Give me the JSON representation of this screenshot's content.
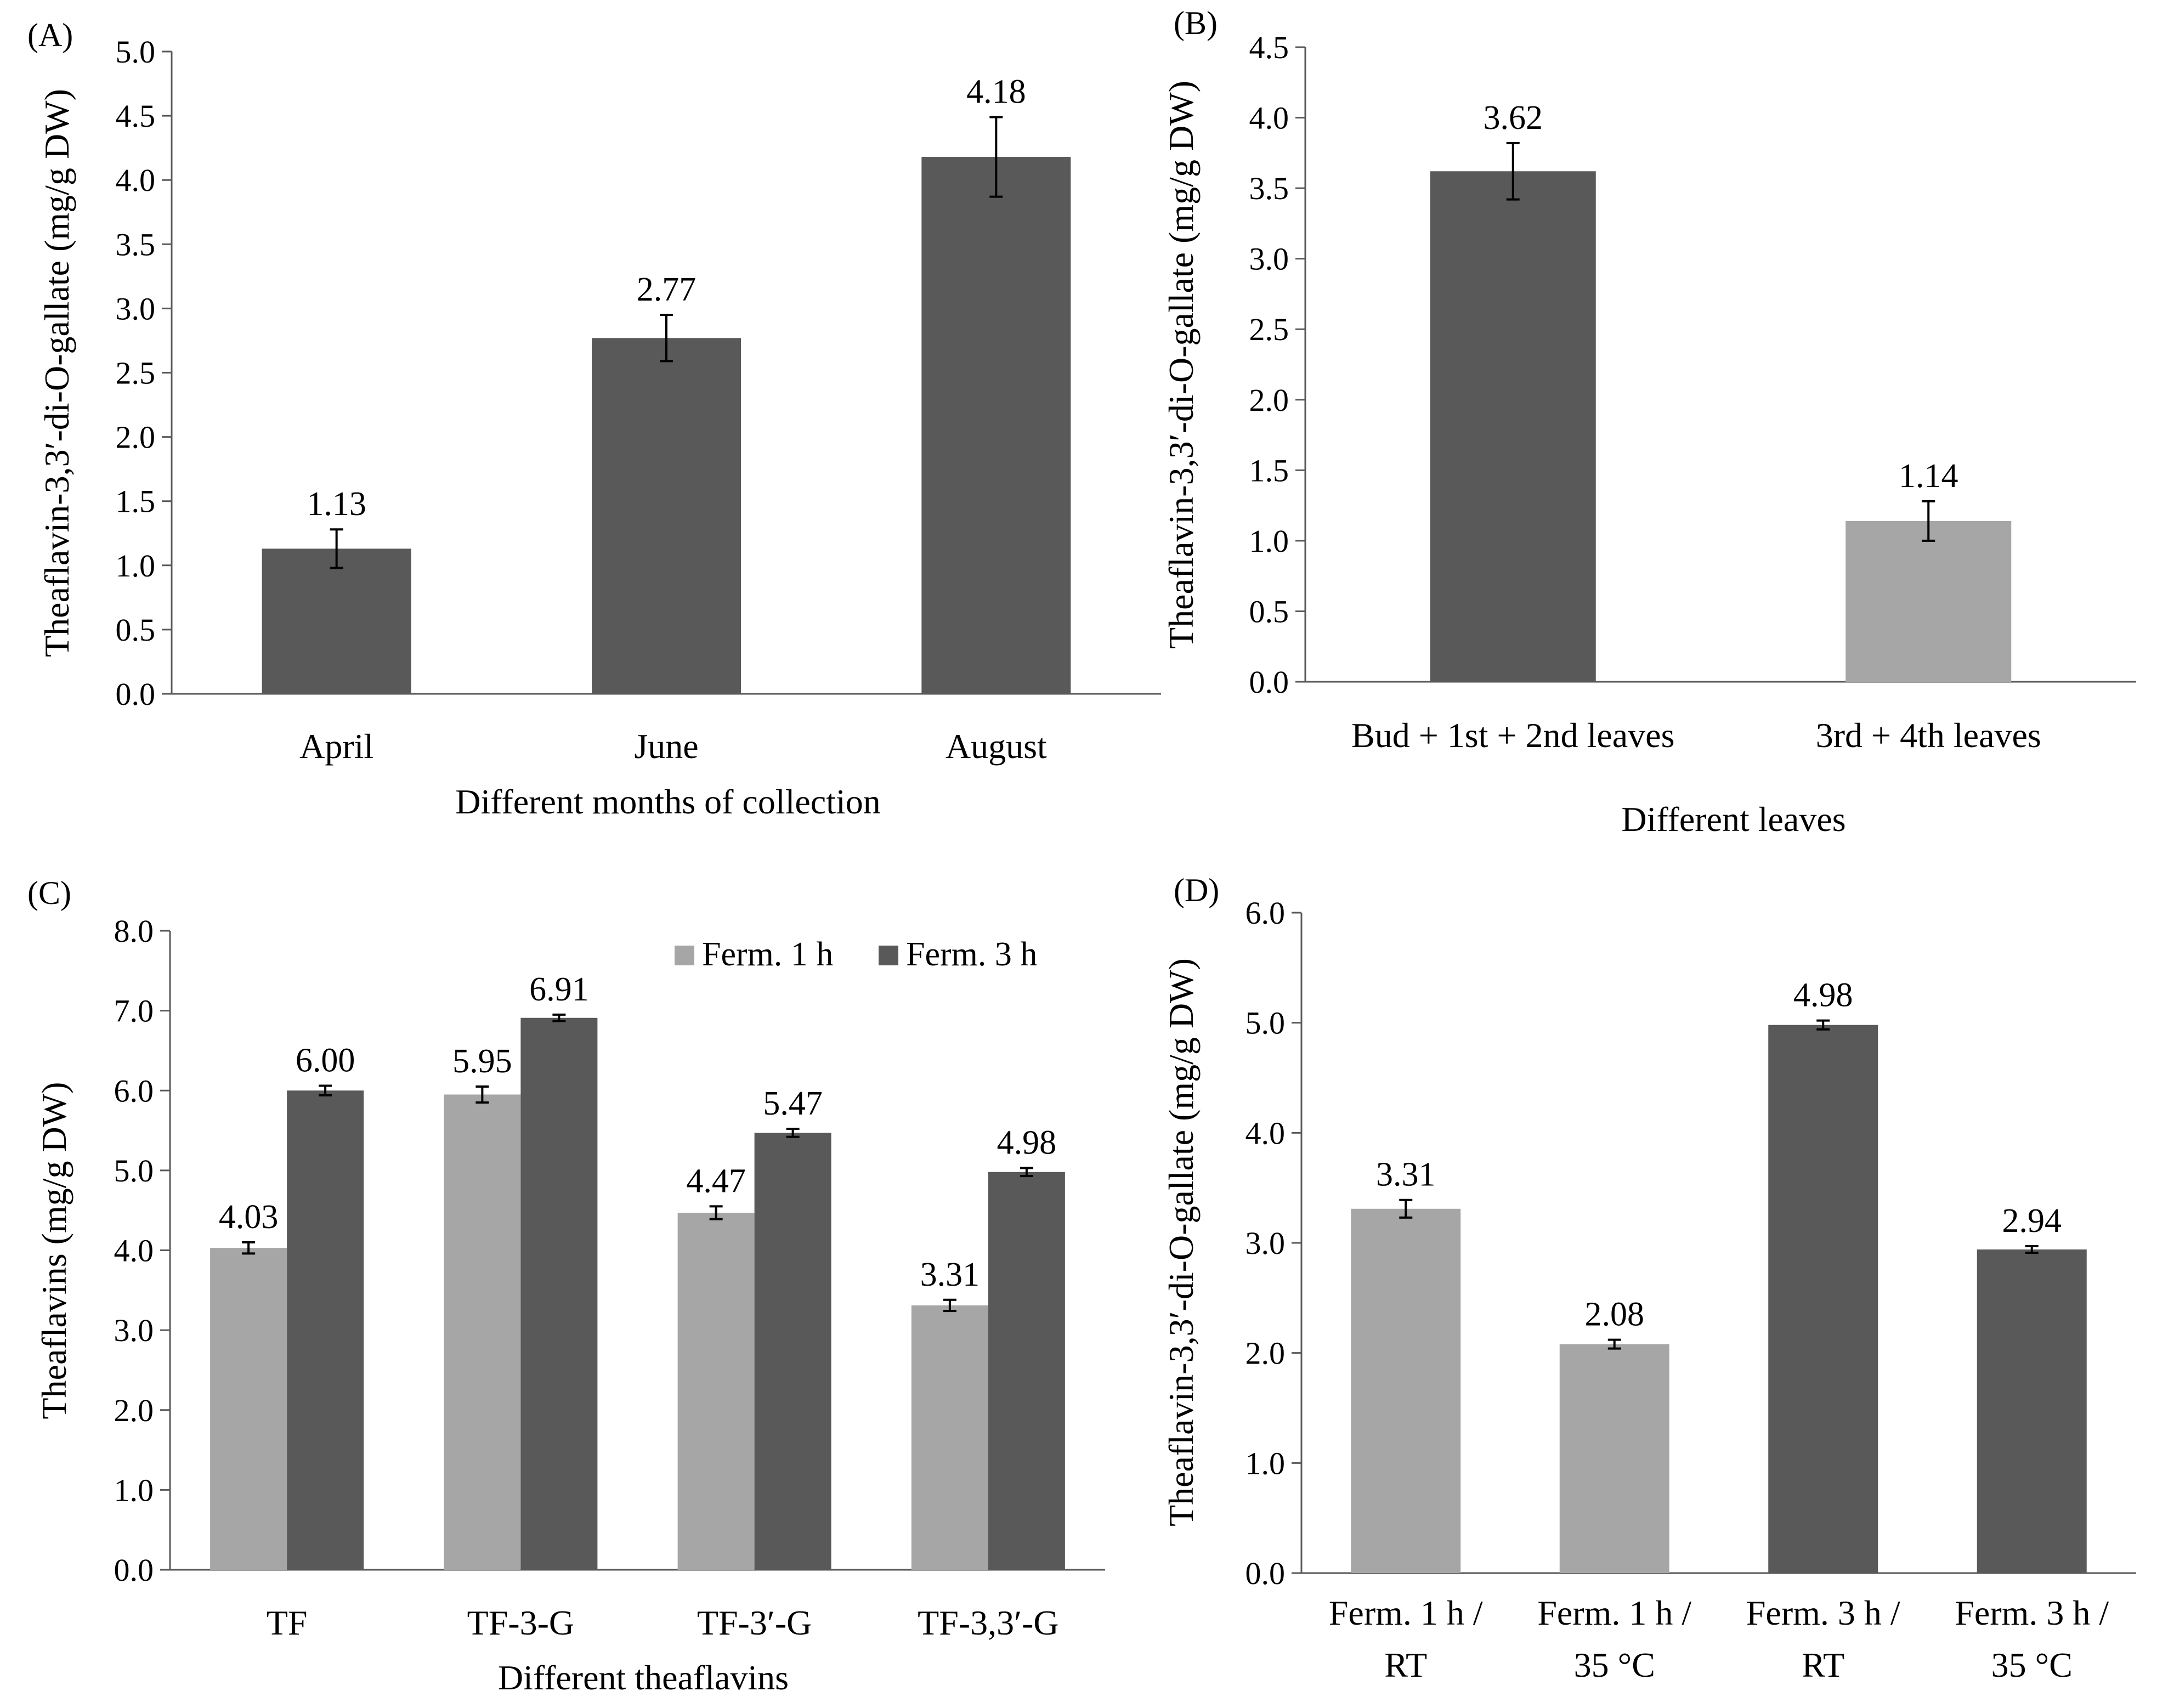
{
  "chart_data": [
    {
      "panel": "(A)",
      "type": "bar",
      "categories": [
        "April",
        "June",
        "August"
      ],
      "values": [
        1.13,
        2.77,
        4.18
      ],
      "errors": [
        0.15,
        0.18,
        0.31
      ],
      "value_labels": [
        "1.13",
        "2.77",
        "4.18"
      ],
      "bar_colors": [
        "#595959",
        "#595959",
        "#595959"
      ],
      "title": "",
      "xlabel": "Different months of collection",
      "ylabel": "Theaflavin-3,3′-di-O-gallate (mg/g DW)",
      "ylim": [
        0,
        5.0
      ],
      "yticks": [
        "0.0",
        "0.5",
        "1.0",
        "1.5",
        "2.0",
        "2.5",
        "3.0",
        "3.5",
        "4.0",
        "4.5",
        "5.0"
      ],
      "grid": false
    },
    {
      "panel": "(B)",
      "type": "bar",
      "categories": [
        "Bud + 1st + 2nd leaves",
        "3rd + 4th leaves"
      ],
      "values": [
        3.62,
        1.14
      ],
      "errors": [
        0.2,
        0.14
      ],
      "value_labels": [
        "3.62",
        "1.14"
      ],
      "bar_colors": [
        "#595959",
        "#a6a6a6"
      ],
      "title": "",
      "xlabel": "Different leaves",
      "ylabel": "Theaflavin-3,3′-di-O-gallate (mg/g DW)",
      "ylim": [
        0,
        4.5
      ],
      "yticks": [
        "0.0",
        "0.5",
        "1.0",
        "1.5",
        "2.0",
        "2.5",
        "3.0",
        "3.5",
        "4.0",
        "4.5"
      ],
      "grid": false
    },
    {
      "panel": "(C)",
      "type": "bar",
      "categories": [
        "TF",
        "TF-3-G",
        "TF-3′-G",
        "TF-3,3′-G"
      ],
      "series": [
        {
          "name": "Ferm. 1 h",
          "color": "#a6a6a6",
          "values": [
            4.03,
            5.95,
            4.47,
            3.31
          ],
          "errors": [
            0.07,
            0.1,
            0.08,
            0.07
          ],
          "value_labels": [
            "4.03",
            "5.95",
            "4.47",
            "3.31"
          ]
        },
        {
          "name": "Ferm. 3 h",
          "color": "#595959",
          "values": [
            6.0,
            6.91,
            5.47,
            4.98
          ],
          "errors": [
            0.06,
            0.04,
            0.05,
            0.05
          ],
          "value_labels": [
            "6.00",
            "6.91",
            "5.47",
            "4.98"
          ]
        }
      ],
      "title": "",
      "xlabel": "Different theaflavins",
      "ylabel": "Theaflavins (mg/g DW)",
      "ylim": [
        0,
        8.0
      ],
      "yticks": [
        "0.0",
        "1.0",
        "2.0",
        "3.0",
        "4.0",
        "5.0",
        "6.0",
        "7.0",
        "8.0"
      ],
      "legend": "top-right",
      "grid": false
    },
    {
      "panel": "(D)",
      "type": "bar",
      "categories": [
        [
          "Ferm. 1 h /",
          "RT"
        ],
        [
          "Ferm. 1 h /",
          "35 °C"
        ],
        [
          "Ferm. 3 h /",
          "RT"
        ],
        [
          "Ferm. 3 h /",
          "35 °C"
        ]
      ],
      "values": [
        3.31,
        2.08,
        4.98,
        2.94
      ],
      "errors": [
        0.08,
        0.04,
        0.04,
        0.03
      ],
      "value_labels": [
        "3.31",
        "2.08",
        "4.98",
        "2.94"
      ],
      "bar_colors": [
        "#a6a6a6",
        "#a6a6a6",
        "#595959",
        "#595959"
      ],
      "title": "",
      "xlabel": "",
      "ylabel": "Theaflavin-3,3′-di-O-gallate (mg/g DW)",
      "ylim": [
        0,
        6.0
      ],
      "yticks": [
        "0.0",
        "1.0",
        "2.0",
        "3.0",
        "4.0",
        "5.0",
        "6.0"
      ],
      "grid": false
    }
  ]
}
